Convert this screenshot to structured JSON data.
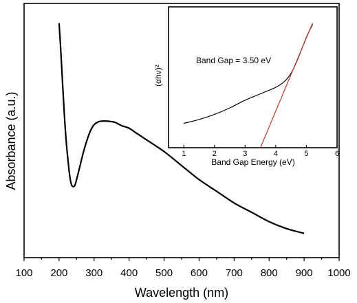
{
  "chart_data": [
    {
      "type": "line",
      "xlabel": "Wavelength (nm)",
      "ylabel": "Absorbance (a.u.)",
      "xlim": [
        100,
        1000
      ],
      "ylim": [
        0,
        1
      ],
      "x_ticks": [
        "100",
        "200",
        "300",
        "400",
        "500",
        "600",
        "700",
        "800",
        "900",
        "1000"
      ],
      "y_tick_labels_shown": false,
      "grid": false,
      "series": [
        {
          "color": "#000000",
          "x": [
            200,
            205,
            210,
            215,
            220,
            225,
            230,
            235,
            240,
            245,
            250,
            255,
            260,
            270,
            280,
            290,
            300,
            310,
            320,
            330,
            340,
            350,
            360,
            380,
            400,
            420,
            450,
            500,
            550,
            600,
            650,
            700,
            750,
            800,
            850,
            900
          ],
          "y": [
            0.96,
            0.84,
            0.7,
            0.57,
            0.46,
            0.38,
            0.31,
            0.27,
            0.26,
            0.265,
            0.29,
            0.32,
            0.35,
            0.41,
            0.46,
            0.5,
            0.525,
            0.536,
            0.54,
            0.541,
            0.54,
            0.538,
            0.535,
            0.52,
            0.51,
            0.49,
            0.46,
            0.41,
            0.35,
            0.29,
            0.24,
            0.19,
            0.15,
            0.11,
            0.08,
            0.06
          ]
        }
      ]
    },
    {
      "type": "line",
      "xlabel": "Band Gap Energy (eV)",
      "ylabel": "(αhν)²",
      "xlim": [
        0.5,
        6
      ],
      "ylim": [
        0,
        1
      ],
      "x_ticks": [
        "1",
        "2",
        "3",
        "4",
        "5",
        "6"
      ],
      "y_tick_labels_shown": false,
      "annotation": "Band Gap = 3.50 eV",
      "grid": false,
      "series": [
        {
          "color": "#000000",
          "x": [
            1.0,
            1.5,
            2.0,
            2.5,
            3.0,
            3.5,
            4.0,
            4.3,
            4.5,
            4.7,
            5.0,
            5.2
          ],
          "y": [
            0.19,
            0.22,
            0.26,
            0.31,
            0.37,
            0.42,
            0.47,
            0.52,
            0.58,
            0.68,
            0.86,
            0.96
          ]
        },
        {
          "color": "#c0392b",
          "x": [
            3.5,
            5.2
          ],
          "y": [
            0.0,
            0.97
          ]
        }
      ]
    }
  ]
}
